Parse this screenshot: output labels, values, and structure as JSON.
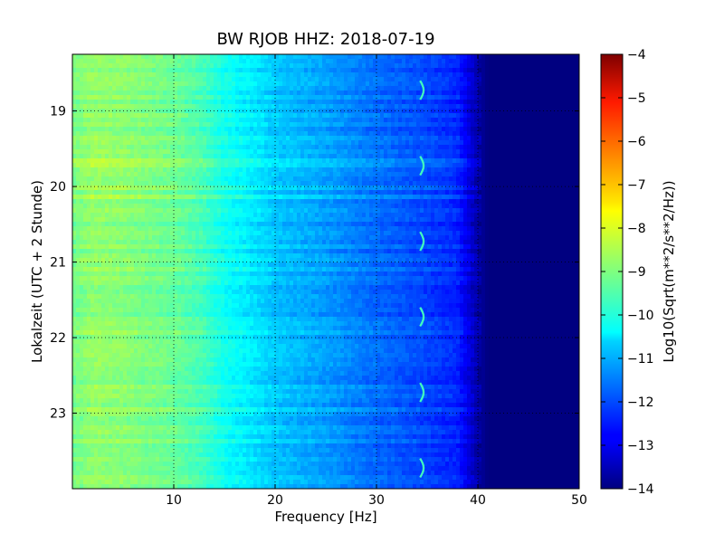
{
  "chart_data": {
    "type": "heatmap",
    "title": "BW RJOB HHZ: 2018-07-19",
    "xlabel": "Frequency [Hz]",
    "ylabel": "Lokalzeit (UTC + 2 Stunde)",
    "xlim": [
      0,
      50
    ],
    "ylim": [
      18.25,
      24.0
    ],
    "y_inverted": true,
    "grid": true,
    "x_ticks": [
      10,
      20,
      30,
      40,
      50
    ],
    "y_ticks": [
      19,
      20,
      21,
      22,
      23
    ],
    "colormap": "jet",
    "colorbar": {
      "label": "Log10(Sqrt(m**2/s**2/Hz))",
      "range": [
        -14,
        -4
      ],
      "ticks": [
        -4,
        -5,
        -6,
        -7,
        -8,
        -9,
        -10,
        -11,
        -12,
        -13,
        -14
      ]
    },
    "spectral_profile": {
      "frequency_hz": [
        0,
        2,
        5,
        10,
        13,
        15,
        18,
        20,
        25,
        30,
        34,
        38,
        39,
        40,
        41,
        50
      ],
      "log10_amplitude": [
        -9.1,
        -8.8,
        -8.9,
        -9.2,
        -9.6,
        -10.1,
        -10.5,
        -10.8,
        -11.2,
        -11.7,
        -12.0,
        -12.4,
        -13.0,
        -13.6,
        -14.0,
        -14.0
      ]
    },
    "narrowband_line_hz": 34.3
  }
}
